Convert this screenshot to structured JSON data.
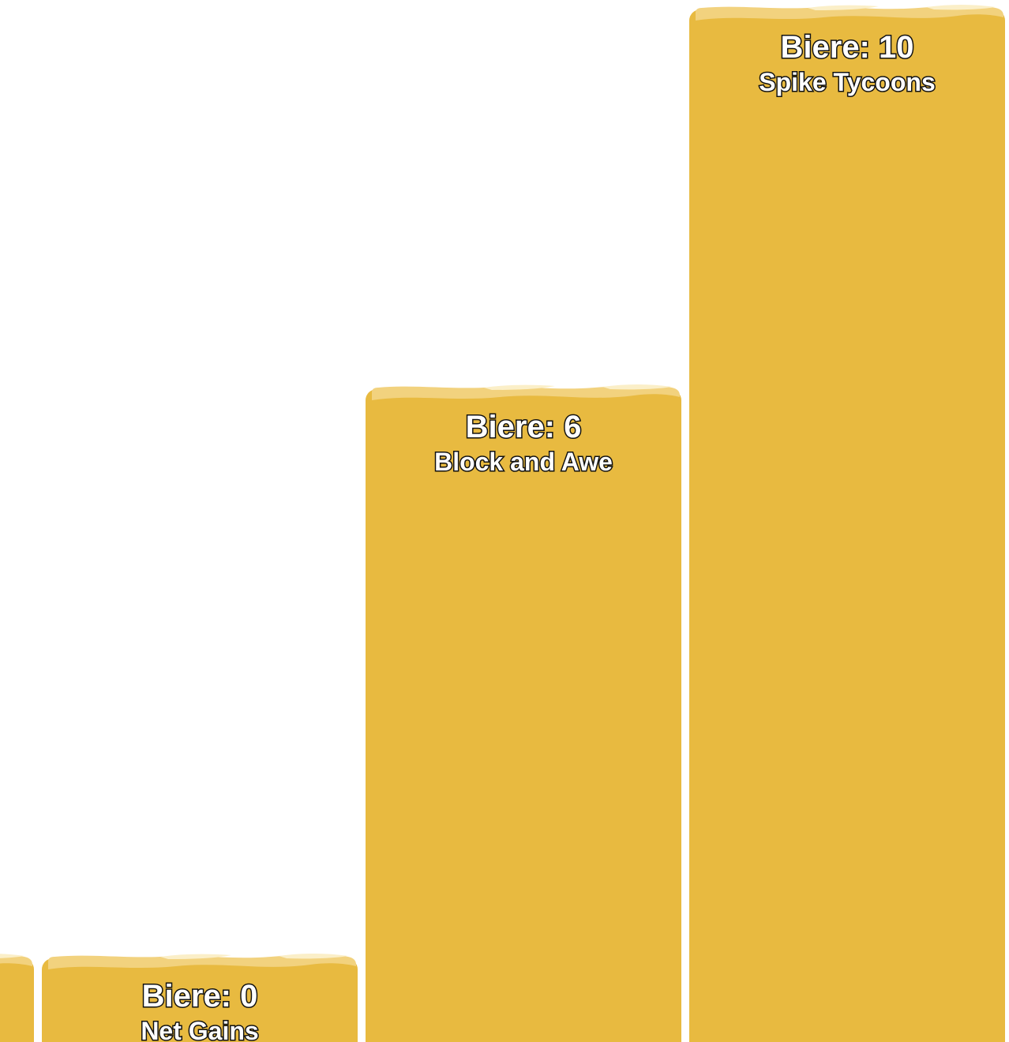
{
  "chart_data": {
    "type": "bar",
    "categories": [
      "",
      "Net Gains",
      "Block and Awe",
      "Spike Tycoons"
    ],
    "series": [
      {
        "values": [
          0,
          0,
          6,
          10
        ]
      }
    ],
    "value_prefix": "Biere: ",
    "title": "",
    "xlabel": "",
    "ylabel": "",
    "ylim": [
      0,
      10
    ],
    "grid": false,
    "legend": "none",
    "colors": {
      "bar": "#E8BA40",
      "foam_light": "#F2D27E",
      "foam_highlight": "#FBEFC8",
      "label_text": "#FFFFFF",
      "label_outline": "#111111"
    }
  }
}
